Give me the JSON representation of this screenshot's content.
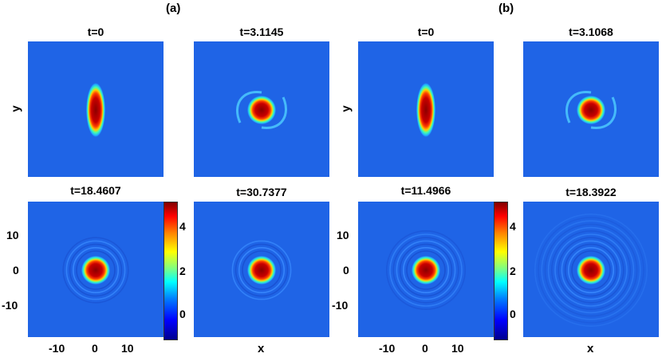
{
  "chart_data": {
    "type": "heatmap",
    "groups": [
      {
        "label": "(a)",
        "panels": [
          {
            "time_label": "t=0",
            "shape": "ellipse",
            "rings": 0,
            "arms": 0
          },
          {
            "time_label": "t=3.1145",
            "shape": "disc",
            "rings": 0,
            "arms": 2
          },
          {
            "time_label": "t=18.4607",
            "shape": "disc",
            "rings": 5,
            "arms": 0
          },
          {
            "time_label": "t=30.7377",
            "shape": "disc",
            "rings": 4,
            "arms": 0
          }
        ]
      },
      {
        "label": "(b)",
        "panels": [
          {
            "time_label": "t=0",
            "shape": "ellipse",
            "rings": 0,
            "arms": 0
          },
          {
            "time_label": "t=3.1068",
            "shape": "disc",
            "rings": 0,
            "arms": 2
          },
          {
            "time_label": "t=11.4966",
            "shape": "disc",
            "rings": 7,
            "arms": 0
          },
          {
            "time_label": "t=18.3922",
            "shape": "disc",
            "rings": 12,
            "arms": 0
          }
        ]
      }
    ],
    "xlabel": "x",
    "ylabel": "y",
    "x_ticks": [
      "-10",
      "0",
      "10"
    ],
    "y_ticks": [
      "10",
      "0",
      "-10"
    ],
    "colorbar": {
      "ticks": [
        "4",
        "2",
        "0"
      ],
      "range": [
        -1,
        5
      ],
      "colormap": "jet"
    },
    "axis_range": [
      -20,
      20
    ],
    "grid": false
  }
}
